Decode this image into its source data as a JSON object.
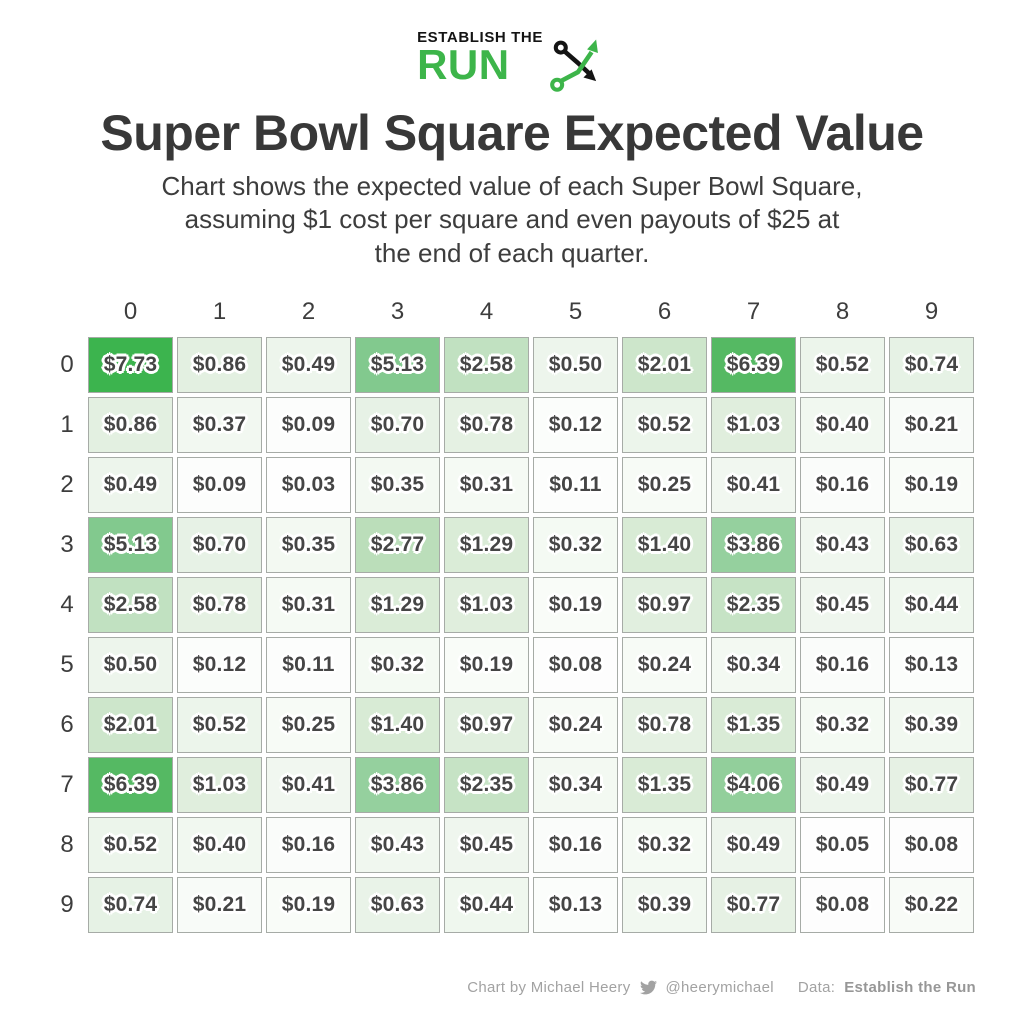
{
  "logo": {
    "top_text": "ESTABLISH THE",
    "main_text": "RUN",
    "icon": "play-route-icon",
    "brand_green": "#3db54a"
  },
  "title": "Super Bowl Square Expected Value",
  "subtitle_lines": [
    "Chart shows the expected value of each Super Bowl Square,",
    "assuming $1 cost per square and even payouts of $25 at",
    "the end of each quarter."
  ],
  "footer": {
    "credit": "Chart by Michael Heery",
    "twitter_icon": "twitter-bird-icon",
    "twitter_handle": "@heerymichael",
    "data_label": "Data:",
    "data_source": "Establish the Run"
  },
  "chart_data": {
    "type": "heatmap",
    "title": "Super Bowl Square Expected Value",
    "subtitle": "Chart shows the expected value of each Super Bowl Square, assuming $1 cost per square and even payouts of $25 at the end of each quarter.",
    "x_labels": [
      "0",
      "1",
      "2",
      "3",
      "4",
      "5",
      "6",
      "7",
      "8",
      "9"
    ],
    "y_labels": [
      "0",
      "1",
      "2",
      "3",
      "4",
      "5",
      "6",
      "7",
      "8",
      "9"
    ],
    "cell_prefix": "$",
    "value_decimals": 2,
    "values": [
      [
        7.73,
        0.86,
        0.49,
        5.13,
        2.58,
        0.5,
        2.01,
        6.39,
        0.52,
        0.74
      ],
      [
        0.86,
        0.37,
        0.09,
        0.7,
        0.78,
        0.12,
        0.52,
        1.03,
        0.4,
        0.21
      ],
      [
        0.49,
        0.09,
        0.03,
        0.35,
        0.31,
        0.11,
        0.25,
        0.41,
        0.16,
        0.19
      ],
      [
        5.13,
        0.7,
        0.35,
        2.77,
        1.29,
        0.32,
        1.4,
        3.86,
        0.43,
        0.63
      ],
      [
        2.58,
        0.78,
        0.31,
        1.29,
        1.03,
        0.19,
        0.97,
        2.35,
        0.45,
        0.44
      ],
      [
        0.5,
        0.12,
        0.11,
        0.32,
        0.19,
        0.08,
        0.24,
        0.34,
        0.16,
        0.13
      ],
      [
        2.01,
        0.52,
        0.25,
        1.4,
        0.97,
        0.24,
        0.78,
        1.35,
        0.32,
        0.39
      ],
      [
        6.39,
        1.03,
        0.41,
        3.86,
        2.35,
        0.34,
        1.35,
        4.06,
        0.49,
        0.77
      ],
      [
        0.52,
        0.4,
        0.16,
        0.43,
        0.45,
        0.16,
        0.32,
        0.49,
        0.05,
        0.08
      ],
      [
        0.74,
        0.21,
        0.19,
        0.63,
        0.44,
        0.13,
        0.39,
        0.77,
        0.08,
        0.22
      ]
    ],
    "value_domain": [
      0,
      7.73
    ],
    "color_scale_stops": [
      [
        0.0,
        "#ffffff"
      ],
      [
        0.1,
        "#fcfdfc"
      ],
      [
        0.3,
        "#f5faf4"
      ],
      [
        0.5,
        "#edf5ec"
      ],
      [
        0.86,
        "#e3f0e1"
      ],
      [
        1.4,
        "#d8ebd5"
      ],
      [
        2.01,
        "#cde6cb"
      ],
      [
        2.58,
        "#c1e1c1"
      ],
      [
        2.77,
        "#bbdeba"
      ],
      [
        3.86,
        "#95d09e"
      ],
      [
        5.13,
        "#82c98e"
      ],
      [
        6.39,
        "#55b963"
      ],
      [
        7.73,
        "#3cb44e"
      ]
    ],
    "grid": false,
    "legend": "none"
  }
}
